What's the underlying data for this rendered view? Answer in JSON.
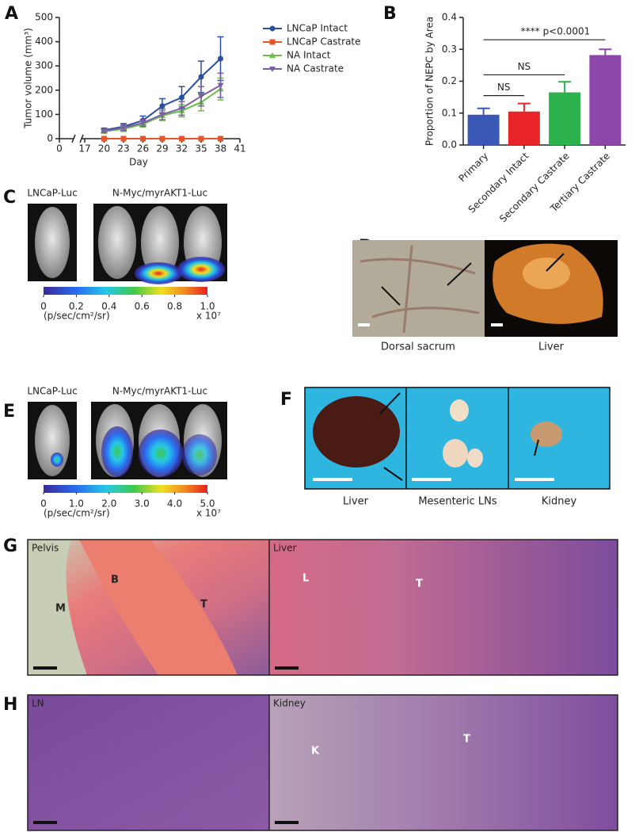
{
  "chart_data": [
    {
      "type": "line",
      "xlabel": "Day",
      "ylabel": "Tumor volume (mm³)",
      "x": [
        20,
        23,
        26,
        29,
        32,
        35,
        38
      ],
      "xlim": [
        0,
        41
      ],
      "xticks": [
        0,
        17,
        20,
        23,
        26,
        29,
        32,
        35,
        38,
        41
      ],
      "xbreak": [
        0,
        17
      ],
      "ylim": [
        0,
        500
      ],
      "yticks": [
        0,
        100,
        200,
        300,
        400,
        500
      ],
      "series": [
        {
          "name": "LNCaP Intact",
          "color": "#2b4ea2",
          "marker": "circle",
          "values": [
            35,
            50,
            75,
            135,
            170,
            255,
            330
          ],
          "errors": [
            8,
            12,
            18,
            30,
            45,
            65,
            90
          ]
        },
        {
          "name": "LNCaP Castrate",
          "color": "#e8532a",
          "marker": "square",
          "values": [
            0,
            0,
            0,
            0,
            0,
            0,
            0
          ],
          "errors": [
            0,
            0,
            0,
            0,
            0,
            0,
            0
          ]
        },
        {
          "name": "NA Intact",
          "color": "#69bf45",
          "marker": "triangle",
          "values": [
            30,
            40,
            60,
            95,
            115,
            150,
            205
          ],
          "errors": [
            6,
            10,
            12,
            20,
            25,
            35,
            45
          ]
        },
        {
          "name": "NA Castrate",
          "color": "#7b5ea7",
          "marker": "triangle-down",
          "values": [
            32,
            45,
            65,
            100,
            125,
            175,
            220
          ],
          "errors": [
            7,
            11,
            14,
            22,
            28,
            40,
            50
          ]
        }
      ]
    },
    {
      "type": "bar",
      "ylabel": "Proportion of NEPC by Area",
      "categories": [
        "Primary",
        "Secondary Intact",
        "Secondary Castrate",
        "Tertiary Castrate"
      ],
      "values": [
        0.095,
        0.105,
        0.165,
        0.282
      ],
      "errors": [
        0.02,
        0.025,
        0.033,
        0.018
      ],
      "colors": [
        "#3a58b5",
        "#e8262a",
        "#2bb24c",
        "#8c45a8"
      ],
      "ylim": [
        0,
        0.4
      ],
      "yticks": [
        {
          "value": 0,
          "label": "0.0"
        },
        0.1,
        0.2,
        0.3,
        0.4
      ],
      "annotations": [
        {
          "text": "NS",
          "y": 0.155
        },
        {
          "text": "NS",
          "y": 0.22
        },
        {
          "text": "**** p<0.0001",
          "y": 0.33
        }
      ]
    }
  ],
  "panels": {
    "A": "A",
    "B": "B",
    "C": {
      "letter": "C",
      "left": "LNCaP-Luc",
      "right": "N-Myc/myrAKT1-Luc",
      "ticks": [
        "0",
        "0.2",
        "0.4",
        "0.6",
        "0.8",
        "1.0"
      ],
      "unit": "(p/sec/cm²/sr)",
      "scale": "x 10⁷"
    },
    "D": {
      "letter": "D",
      "left": "Dorsal sacrum",
      "right": "Liver"
    },
    "E": {
      "letter": "E",
      "left": "LNCaP-Luc",
      "right": "N-Myc/myrAKT1-Luc",
      "ticks": [
        "0",
        "1.0",
        "2.0",
        "3.0",
        "4.0",
        "5.0"
      ],
      "unit": "(p/sec/cm²/sr)",
      "scale": "x 10⁷"
    },
    "F": {
      "letter": "F",
      "labels": [
        "Liver",
        "Mesenteric LNs",
        "Kidney"
      ]
    },
    "G": {
      "letter": "G",
      "left": "Pelvis",
      "right": "Liver",
      "marks": [
        "M",
        "B",
        "T",
        "L",
        "T"
      ]
    },
    "H": {
      "letter": "H",
      "left": "LN",
      "right": "Kidney",
      "marks": [
        "K",
        "T"
      ]
    }
  }
}
